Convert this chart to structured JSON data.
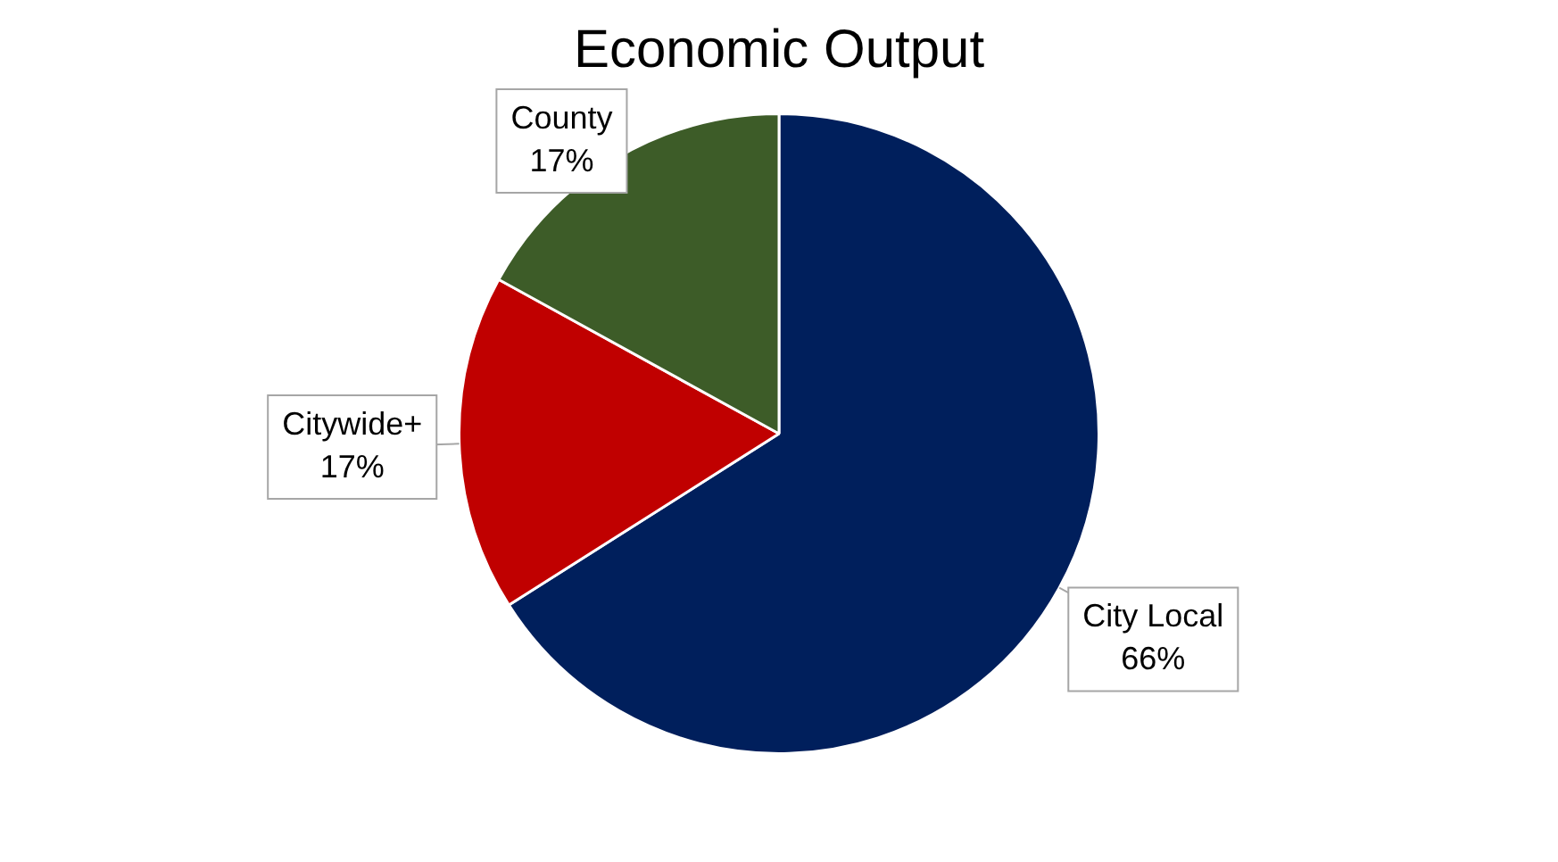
{
  "chart_data": {
    "type": "pie",
    "title": "Economic Output",
    "categories": [
      "City Local",
      "Citywide+",
      "County"
    ],
    "values": [
      66,
      17,
      17
    ],
    "value_labels": [
      "66%",
      "17%",
      "17%"
    ],
    "colors": [
      "#001f5c",
      "#c00000",
      "#3d5c28"
    ],
    "legend": false
  }
}
